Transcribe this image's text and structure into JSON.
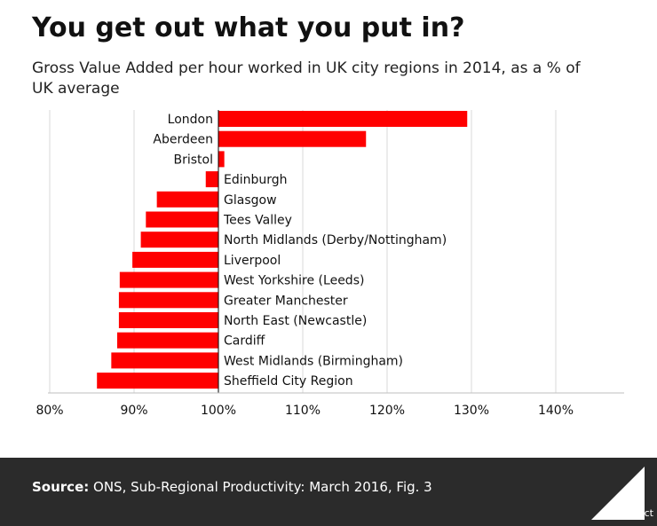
{
  "header": {
    "title": "You get out what you put in?",
    "subtitle": "Gross Value Added per hour worked in UK city regions in 2014, as a % of UK average"
  },
  "footer": {
    "source_label": "Source:",
    "source_text": "ONS, Sub-Regional Productivity: March 2016, Fig. 3",
    "logo_text": "Full Fact"
  },
  "colors": {
    "bar": "#ff0000",
    "grid": "#d9d9d9",
    "axis": "#000000",
    "footer_bg": "#2b2b2b"
  },
  "chart_data": {
    "type": "bar",
    "orientation": "horizontal",
    "baseline": 100,
    "categories": [
      "London",
      "Aberdeen",
      "Bristol",
      "Edinburgh",
      "Glasgow",
      "Tees Valley",
      "North Midlands (Derby/Nottingham)",
      "Liverpool",
      "West Yorkshire (Leeds)",
      "Greater Manchester",
      "North East (Newcastle)",
      "Cardiff",
      "West Midlands (Birmingham)",
      "Sheffield City Region"
    ],
    "values": [
      129.5,
      117.5,
      100.7,
      98.5,
      92.7,
      91.4,
      90.8,
      89.8,
      88.3,
      88.2,
      88.2,
      88.0,
      87.3,
      85.6
    ],
    "xlim": [
      80,
      140
    ],
    "xticks": [
      80,
      90,
      100,
      110,
      120,
      130,
      140
    ],
    "xtick_labels": [
      "80%",
      "90%",
      "100%",
      "110%",
      "120%",
      "130%",
      "140%"
    ],
    "grid": true
  }
}
